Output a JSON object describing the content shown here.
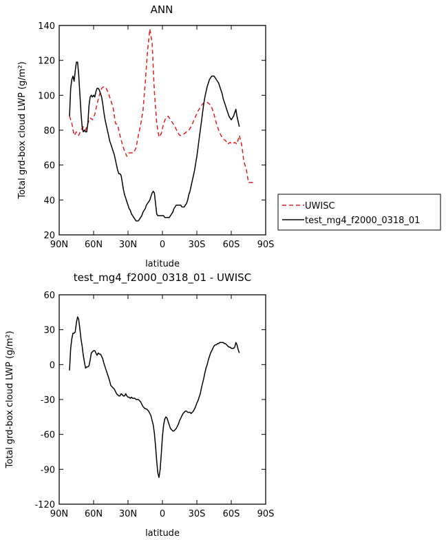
{
  "chart_data": [
    {
      "type": "line",
      "title": "ANN",
      "xlabel": "latitude",
      "ylabel": "Total grd-box cloud LWP (g/m²)",
      "x_direction": "north_to_south",
      "xlim": [
        90,
        -90
      ],
      "ylim": [
        20,
        140
      ],
      "xticks": [
        90,
        60,
        30,
        0,
        -30,
        -60,
        -90
      ],
      "xtick_labels": [
        "90N",
        "60N",
        "30N",
        "0",
        "30S",
        "60S",
        "90S"
      ],
      "yticks": [
        20,
        40,
        60,
        80,
        100,
        120,
        140
      ],
      "ytick_labels": [
        "20",
        "40",
        "60",
        "80",
        "100",
        "120",
        "140"
      ],
      "grid": false,
      "legend_position": "right",
      "series": [
        {
          "name": "UWISC",
          "color": "#e41a1c",
          "dash": "dashed",
          "x": [
            81,
            79,
            77,
            75,
            73,
            71,
            69,
            67,
            65,
            63,
            61,
            59,
            57,
            55,
            53,
            51,
            49,
            47,
            45,
            43,
            41,
            39,
            37,
            35,
            33,
            31,
            29,
            27,
            25,
            23,
            21,
            19,
            17,
            15,
            13,
            11,
            9,
            7,
            5,
            3,
            1,
            -1,
            -3,
            -5,
            -7,
            -9,
            -11,
            -13,
            -15,
            -17,
            -19,
            -21,
            -23,
            -25,
            -27,
            -29,
            -31,
            -33,
            -35,
            -37,
            -39,
            -41,
            -43,
            -45,
            -47,
            -49,
            -51,
            -53,
            -55,
            -57,
            -59,
            -61,
            -63,
            -65,
            -67,
            -69,
            -71,
            -73,
            -75,
            -77,
            -79
          ],
          "y": [
            88,
            84,
            77,
            79,
            77,
            80,
            82,
            80,
            84,
            87,
            86,
            89,
            95,
            100,
            104,
            105,
            104,
            101,
            97,
            93,
            84,
            83,
            77,
            72,
            68,
            65,
            67,
            67,
            67,
            70,
            77,
            83,
            91,
            107,
            125,
            138,
            130,
            102,
            84,
            76,
            78,
            84,
            87,
            88,
            86,
            84,
            82,
            79,
            77,
            77,
            78,
            79,
            80,
            82,
            85,
            88,
            91,
            93,
            95,
            96,
            96,
            95,
            93,
            89,
            84,
            80,
            77,
            75,
            74,
            72,
            73,
            72,
            73,
            72,
            77,
            72,
            62,
            58,
            50,
            50,
            50
          ]
        },
        {
          "name": "test_mg4_f2000_0318_01",
          "color": "#000000",
          "dash": "solid",
          "x": [
            81,
            80,
            79,
            78,
            77,
            76,
            75,
            74,
            73,
            72,
            71,
            70,
            69,
            68,
            67,
            66,
            65,
            64,
            63,
            62,
            61,
            60,
            59,
            58,
            57,
            56,
            55,
            54,
            53,
            52,
            51,
            50,
            49,
            48,
            47,
            46,
            45,
            44,
            43,
            42,
            41,
            40,
            39,
            38,
            37,
            36,
            35,
            34,
            33,
            32,
            31,
            30,
            29,
            28,
            27,
            26,
            25,
            24,
            23,
            22,
            21,
            20,
            19,
            18,
            17,
            16,
            15,
            14,
            13,
            12,
            11,
            10,
            9,
            8,
            7,
            6,
            5,
            4,
            3,
            2,
            1,
            0,
            -1,
            -2,
            -3,
            -4,
            -5,
            -6,
            -7,
            -8,
            -9,
            -10,
            -11,
            -12,
            -13,
            -14,
            -15,
            -16,
            -17,
            -18,
            -19,
            -20,
            -21,
            -22,
            -23,
            -24,
            -25,
            -26,
            -27,
            -28,
            -29,
            -30,
            -31,
            -32,
            -33,
            -34,
            -35,
            -36,
            -37,
            -38,
            -39,
            -40,
            -41,
            -42,
            -43,
            -44,
            -45,
            -46,
            -47,
            -48,
            -49,
            -50,
            -51,
            -52,
            -53,
            -54,
            -55,
            -56,
            -57,
            -58,
            -59,
            -60,
            -61,
            -62,
            -63,
            -64,
            -65,
            -66,
            -67
          ],
          "y": [
            88,
            104,
            109,
            111,
            108,
            114,
            119,
            119,
            112,
            101,
            90,
            82,
            79,
            80,
            79,
            79,
            84,
            94,
            99,
            100,
            99,
            100,
            99,
            102,
            104,
            104,
            103,
            101,
            99,
            95,
            90,
            86,
            83,
            80,
            77,
            74,
            72,
            70,
            68,
            66,
            63,
            60,
            57,
            55,
            55,
            54,
            50,
            46,
            43,
            41,
            39,
            37,
            35,
            34,
            32,
            31,
            30,
            29,
            28,
            28,
            28,
            29,
            30,
            31,
            33,
            34,
            35,
            37,
            38,
            39,
            40,
            42,
            44,
            45,
            44,
            38,
            32,
            31,
            31,
            31,
            31,
            31,
            31,
            30,
            30,
            30,
            30,
            30,
            31,
            32,
            33,
            35,
            36,
            37,
            37,
            37,
            37,
            37,
            36,
            36,
            36,
            37,
            38,
            40,
            43,
            45,
            48,
            51,
            54,
            57,
            61,
            65,
            70,
            75,
            80,
            85,
            90,
            95,
            99,
            102,
            105,
            107,
            109,
            110,
            111,
            111,
            111,
            110,
            109,
            108,
            107,
            105,
            103,
            101,
            98,
            96,
            94,
            92,
            90,
            88,
            87,
            86,
            87,
            88,
            90,
            92,
            88,
            85,
            82
          ]
        }
      ]
    },
    {
      "type": "line",
      "title": "test_mg4_f2000_0318_01 - UWISC",
      "xlabel": "latitude",
      "ylabel": "Total grd-box cloud LWP (g/m²)",
      "x_direction": "north_to_south",
      "xlim": [
        90,
        -90
      ],
      "ylim": [
        -120,
        60
      ],
      "xticks": [
        90,
        60,
        30,
        0,
        -30,
        -60,
        -90
      ],
      "xtick_labels": [
        "90N",
        "60N",
        "30N",
        "0",
        "30S",
        "60S",
        "90S"
      ],
      "yticks": [
        -120,
        -90,
        -60,
        -30,
        0,
        30,
        60
      ],
      "ytick_labels": [
        "-120",
        "-90",
        "-60",
        "-30",
        "0",
        "30",
        "60"
      ],
      "grid": false,
      "series": [
        {
          "color": "#000000",
          "dash": "solid",
          "x": [
            81,
            80,
            79,
            78,
            77,
            76,
            75,
            74,
            73,
            72,
            71,
            70,
            69,
            68,
            67,
            66,
            65,
            64,
            63,
            62,
            61,
            60,
            59,
            58,
            57,
            56,
            55,
            54,
            53,
            52,
            51,
            50,
            49,
            48,
            47,
            46,
            45,
            44,
            43,
            42,
            41,
            40,
            39,
            38,
            37,
            36,
            35,
            34,
            33,
            32,
            31,
            30,
            29,
            28,
            27,
            26,
            25,
            24,
            23,
            22,
            21,
            20,
            19,
            18,
            17,
            16,
            15,
            14,
            13,
            12,
            11,
            10,
            9,
            8,
            7,
            6,
            5,
            4,
            3,
            2,
            1,
            0,
            -1,
            -2,
            -3,
            -4,
            -5,
            -6,
            -7,
            -8,
            -9,
            -10,
            -11,
            -12,
            -13,
            -14,
            -15,
            -16,
            -17,
            -18,
            -19,
            -20,
            -21,
            -22,
            -23,
            -24,
            -25,
            -26,
            -27,
            -28,
            -29,
            -30,
            -31,
            -32,
            -33,
            -34,
            -35,
            -36,
            -37,
            -38,
            -39,
            -40,
            -41,
            -42,
            -43,
            -44,
            -45,
            -46,
            -47,
            -48,
            -49,
            -50,
            -51,
            -52,
            -53,
            -54,
            -55,
            -56,
            -57,
            -58,
            -59,
            -60,
            -61,
            -62,
            -63,
            -64,
            -65,
            -66,
            -67
          ],
          "y": [
            -5,
            14,
            22,
            27,
            27,
            28,
            36,
            41,
            39,
            31,
            22,
            16,
            8,
            2,
            -3,
            -2,
            -2,
            -1,
            4,
            10,
            11,
            12,
            12,
            10,
            8,
            10,
            9,
            9,
            7,
            5,
            1,
            -2,
            -5,
            -8,
            -11,
            -14,
            -18,
            -19,
            -20,
            -21,
            -23,
            -25,
            -26,
            -27,
            -27,
            -25,
            -26,
            -27,
            -27,
            -25,
            -27,
            -28,
            -28,
            -29,
            -28,
            -29,
            -29,
            -29,
            -30,
            -30,
            -30,
            -31,
            -32,
            -34,
            -36,
            -37,
            -38,
            -38,
            -39,
            -40,
            -42,
            -44,
            -48,
            -52,
            -59,
            -70,
            -83,
            -93,
            -97,
            -90,
            -77,
            -62,
            -52,
            -47,
            -45,
            -46,
            -49,
            -52,
            -55,
            -56,
            -57,
            -57,
            -56,
            -55,
            -53,
            -51,
            -48,
            -46,
            -44,
            -42,
            -41,
            -40,
            -40,
            -41,
            -41,
            -41,
            -42,
            -41,
            -40,
            -38,
            -36,
            -33,
            -31,
            -28,
            -25,
            -20,
            -16,
            -12,
            -7,
            -3,
            0,
            4,
            7,
            10,
            12,
            14,
            16,
            17,
            17,
            18,
            18,
            19,
            19,
            19,
            19,
            18,
            18,
            17,
            16,
            15,
            15,
            14,
            14,
            14,
            15,
            19,
            17,
            13,
            10
          ]
        }
      ]
    }
  ]
}
